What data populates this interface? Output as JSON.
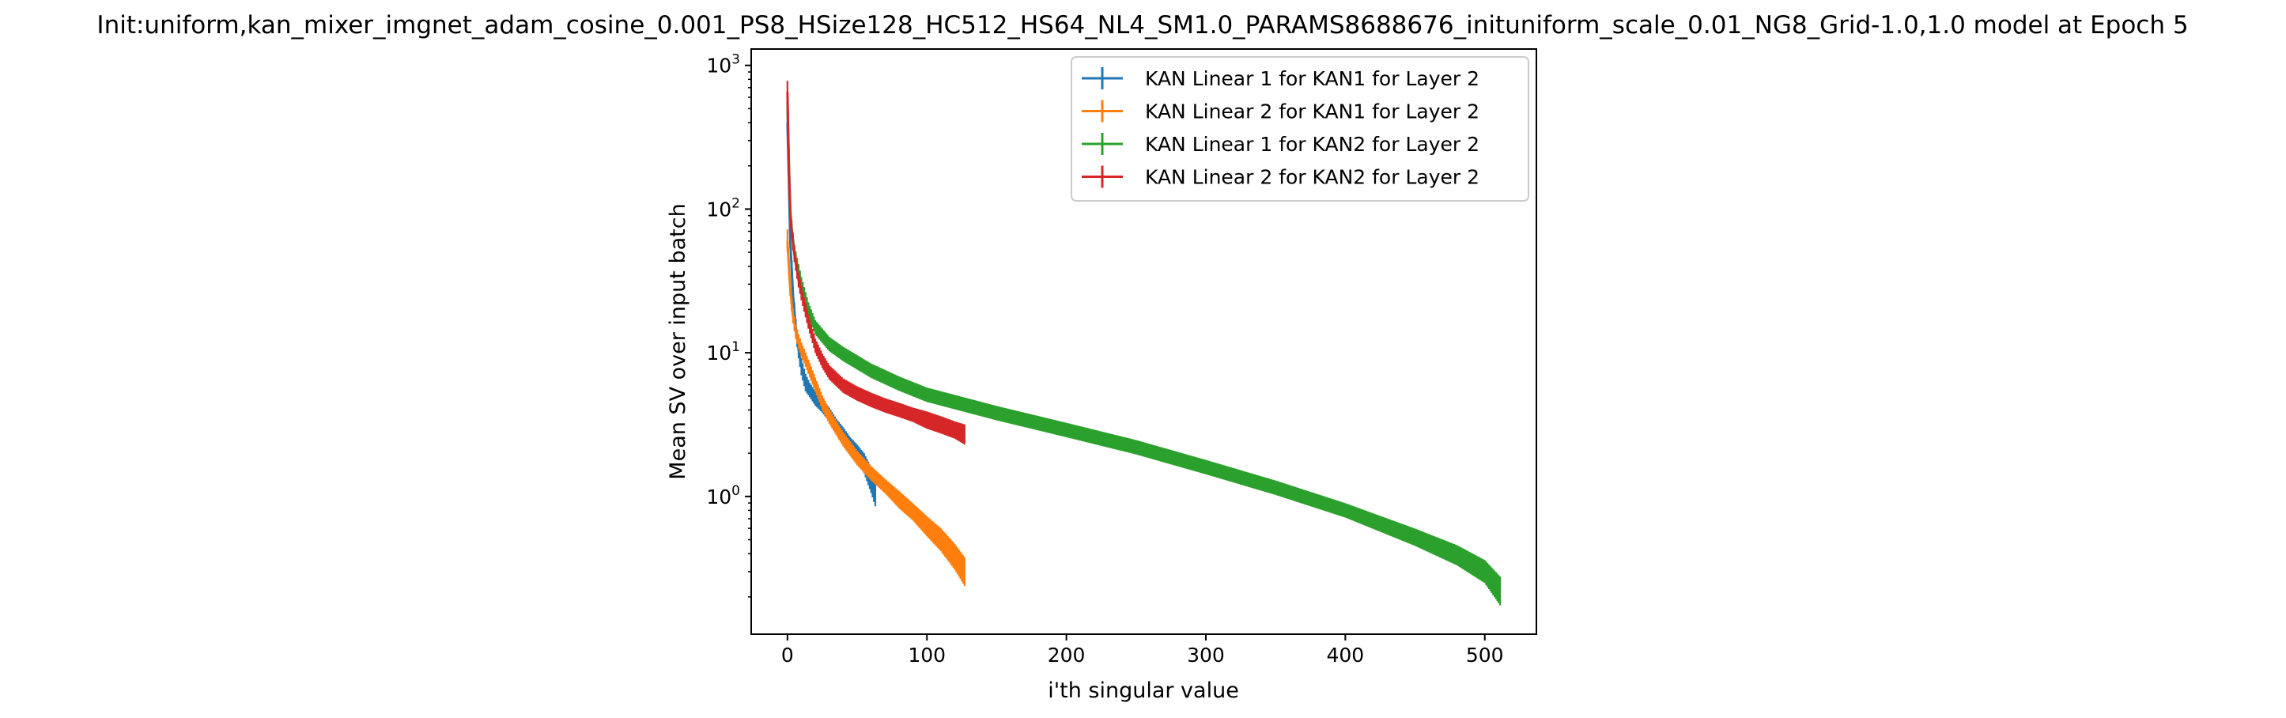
{
  "chart_data": {
    "type": "line",
    "title": "Init:uniform,kan_mixer_imgnet_adam_cosine_0.001_PS8_HSize128_HC512_HS64_NL4_SM1.0_PARAMS8688676_inituniform_scale_0.01_NG8_Grid-1.0,1.0 model at Epoch 5",
    "xlabel": "i'th singular value",
    "ylabel": "Mean SV over input batch",
    "xlim": [
      -26,
      537
    ],
    "ylim": [
      0.11,
      1300
    ],
    "yscale": "log",
    "x_ticks": [
      0,
      100,
      200,
      300,
      400,
      500
    ],
    "y_ticks": [
      {
        "value": 1,
        "label_base": "10",
        "label_exp": "0"
      },
      {
        "value": 10,
        "label_base": "10",
        "label_exp": "1"
      },
      {
        "value": 100,
        "label_base": "10",
        "label_exp": "2"
      },
      {
        "value": 1000,
        "label_base": "10",
        "label_exp": "3"
      }
    ],
    "grid": false,
    "legend_position": "top-right",
    "error_bars": true,
    "series": [
      {
        "name": "KAN Linear 1 for KAN1 for Layer 2",
        "color": "#1f77b4",
        "n_points": 64,
        "x": [
          0,
          1,
          2,
          4,
          6,
          8,
          10,
          13,
          16,
          20,
          25,
          30,
          35,
          40,
          45,
          50,
          55,
          60,
          63
        ],
        "values": [
          400,
          160,
          60,
          25,
          15,
          10.5,
          8,
          6.2,
          5.5,
          4.8,
          4.3,
          3.7,
          3.1,
          2.7,
          2.3,
          2.0,
          1.7,
          1.3,
          1.1
        ],
        "err": [
          0.08,
          0.05,
          0.05,
          0.06,
          0.06,
          0.06,
          0.06,
          0.06,
          0.05,
          0.05,
          0.05,
          0.05,
          0.05,
          0.05,
          0.05,
          0.06,
          0.07,
          0.09,
          0.11
        ]
      },
      {
        "name": "KAN Linear 2 for KAN1 for Layer 2",
        "color": "#ff7f0e",
        "n_points": 128,
        "x": [
          0,
          1,
          2,
          3,
          4,
          6,
          8,
          10,
          12,
          15,
          20,
          25,
          30,
          40,
          50,
          60,
          70,
          80,
          90,
          100,
          110,
          120,
          127
        ],
        "values": [
          60,
          40,
          28,
          22,
          18,
          14,
          12,
          10.5,
          9.5,
          8,
          6,
          4.5,
          3.6,
          2.5,
          1.85,
          1.45,
          1.18,
          0.95,
          0.78,
          0.62,
          0.5,
          0.38,
          0.3
        ],
        "err": [
          0.08,
          0.06,
          0.05,
          0.05,
          0.05,
          0.05,
          0.05,
          0.05,
          0.05,
          0.05,
          0.05,
          0.05,
          0.05,
          0.05,
          0.05,
          0.05,
          0.05,
          0.06,
          0.06,
          0.07,
          0.08,
          0.09,
          0.1
        ]
      },
      {
        "name": "KAN Linear 1 for KAN2 for Layer 2",
        "color": "#2ca02c",
        "n_points": 512,
        "x": [
          0,
          2,
          5,
          10,
          15,
          20,
          30,
          40,
          60,
          80,
          100,
          150,
          200,
          250,
          300,
          350,
          400,
          450,
          480,
          500,
          511
        ],
        "values": [
          550,
          90,
          50,
          30,
          20,
          15,
          11.5,
          9.8,
          7.5,
          6.1,
          5.1,
          3.8,
          2.9,
          2.2,
          1.6,
          1.15,
          0.8,
          0.52,
          0.39,
          0.3,
          0.22
        ],
        "err": [
          0.08,
          0.06,
          0.05,
          0.05,
          0.05,
          0.05,
          0.05,
          0.05,
          0.05,
          0.05,
          0.05,
          0.05,
          0.05,
          0.05,
          0.05,
          0.05,
          0.05,
          0.06,
          0.07,
          0.08,
          0.1
        ]
      },
      {
        "name": "KAN Linear 2 for KAN2 for Layer 2",
        "color": "#d62728",
        "n_points": 128,
        "x": [
          0,
          1,
          2,
          3,
          5,
          8,
          10,
          15,
          20,
          25,
          30,
          40,
          50,
          60,
          70,
          80,
          90,
          100,
          110,
          120,
          127
        ],
        "values": [
          650,
          200,
          100,
          70,
          48,
          32,
          26,
          16.5,
          11.2,
          8.8,
          7.3,
          5.9,
          5.2,
          4.7,
          4.3,
          4.0,
          3.7,
          3.4,
          3.15,
          2.9,
          2.7
        ],
        "err": [
          0.08,
          0.06,
          0.05,
          0.05,
          0.05,
          0.05,
          0.05,
          0.05,
          0.05,
          0.05,
          0.05,
          0.05,
          0.05,
          0.05,
          0.05,
          0.05,
          0.05,
          0.06,
          0.06,
          0.06,
          0.07
        ]
      }
    ]
  }
}
